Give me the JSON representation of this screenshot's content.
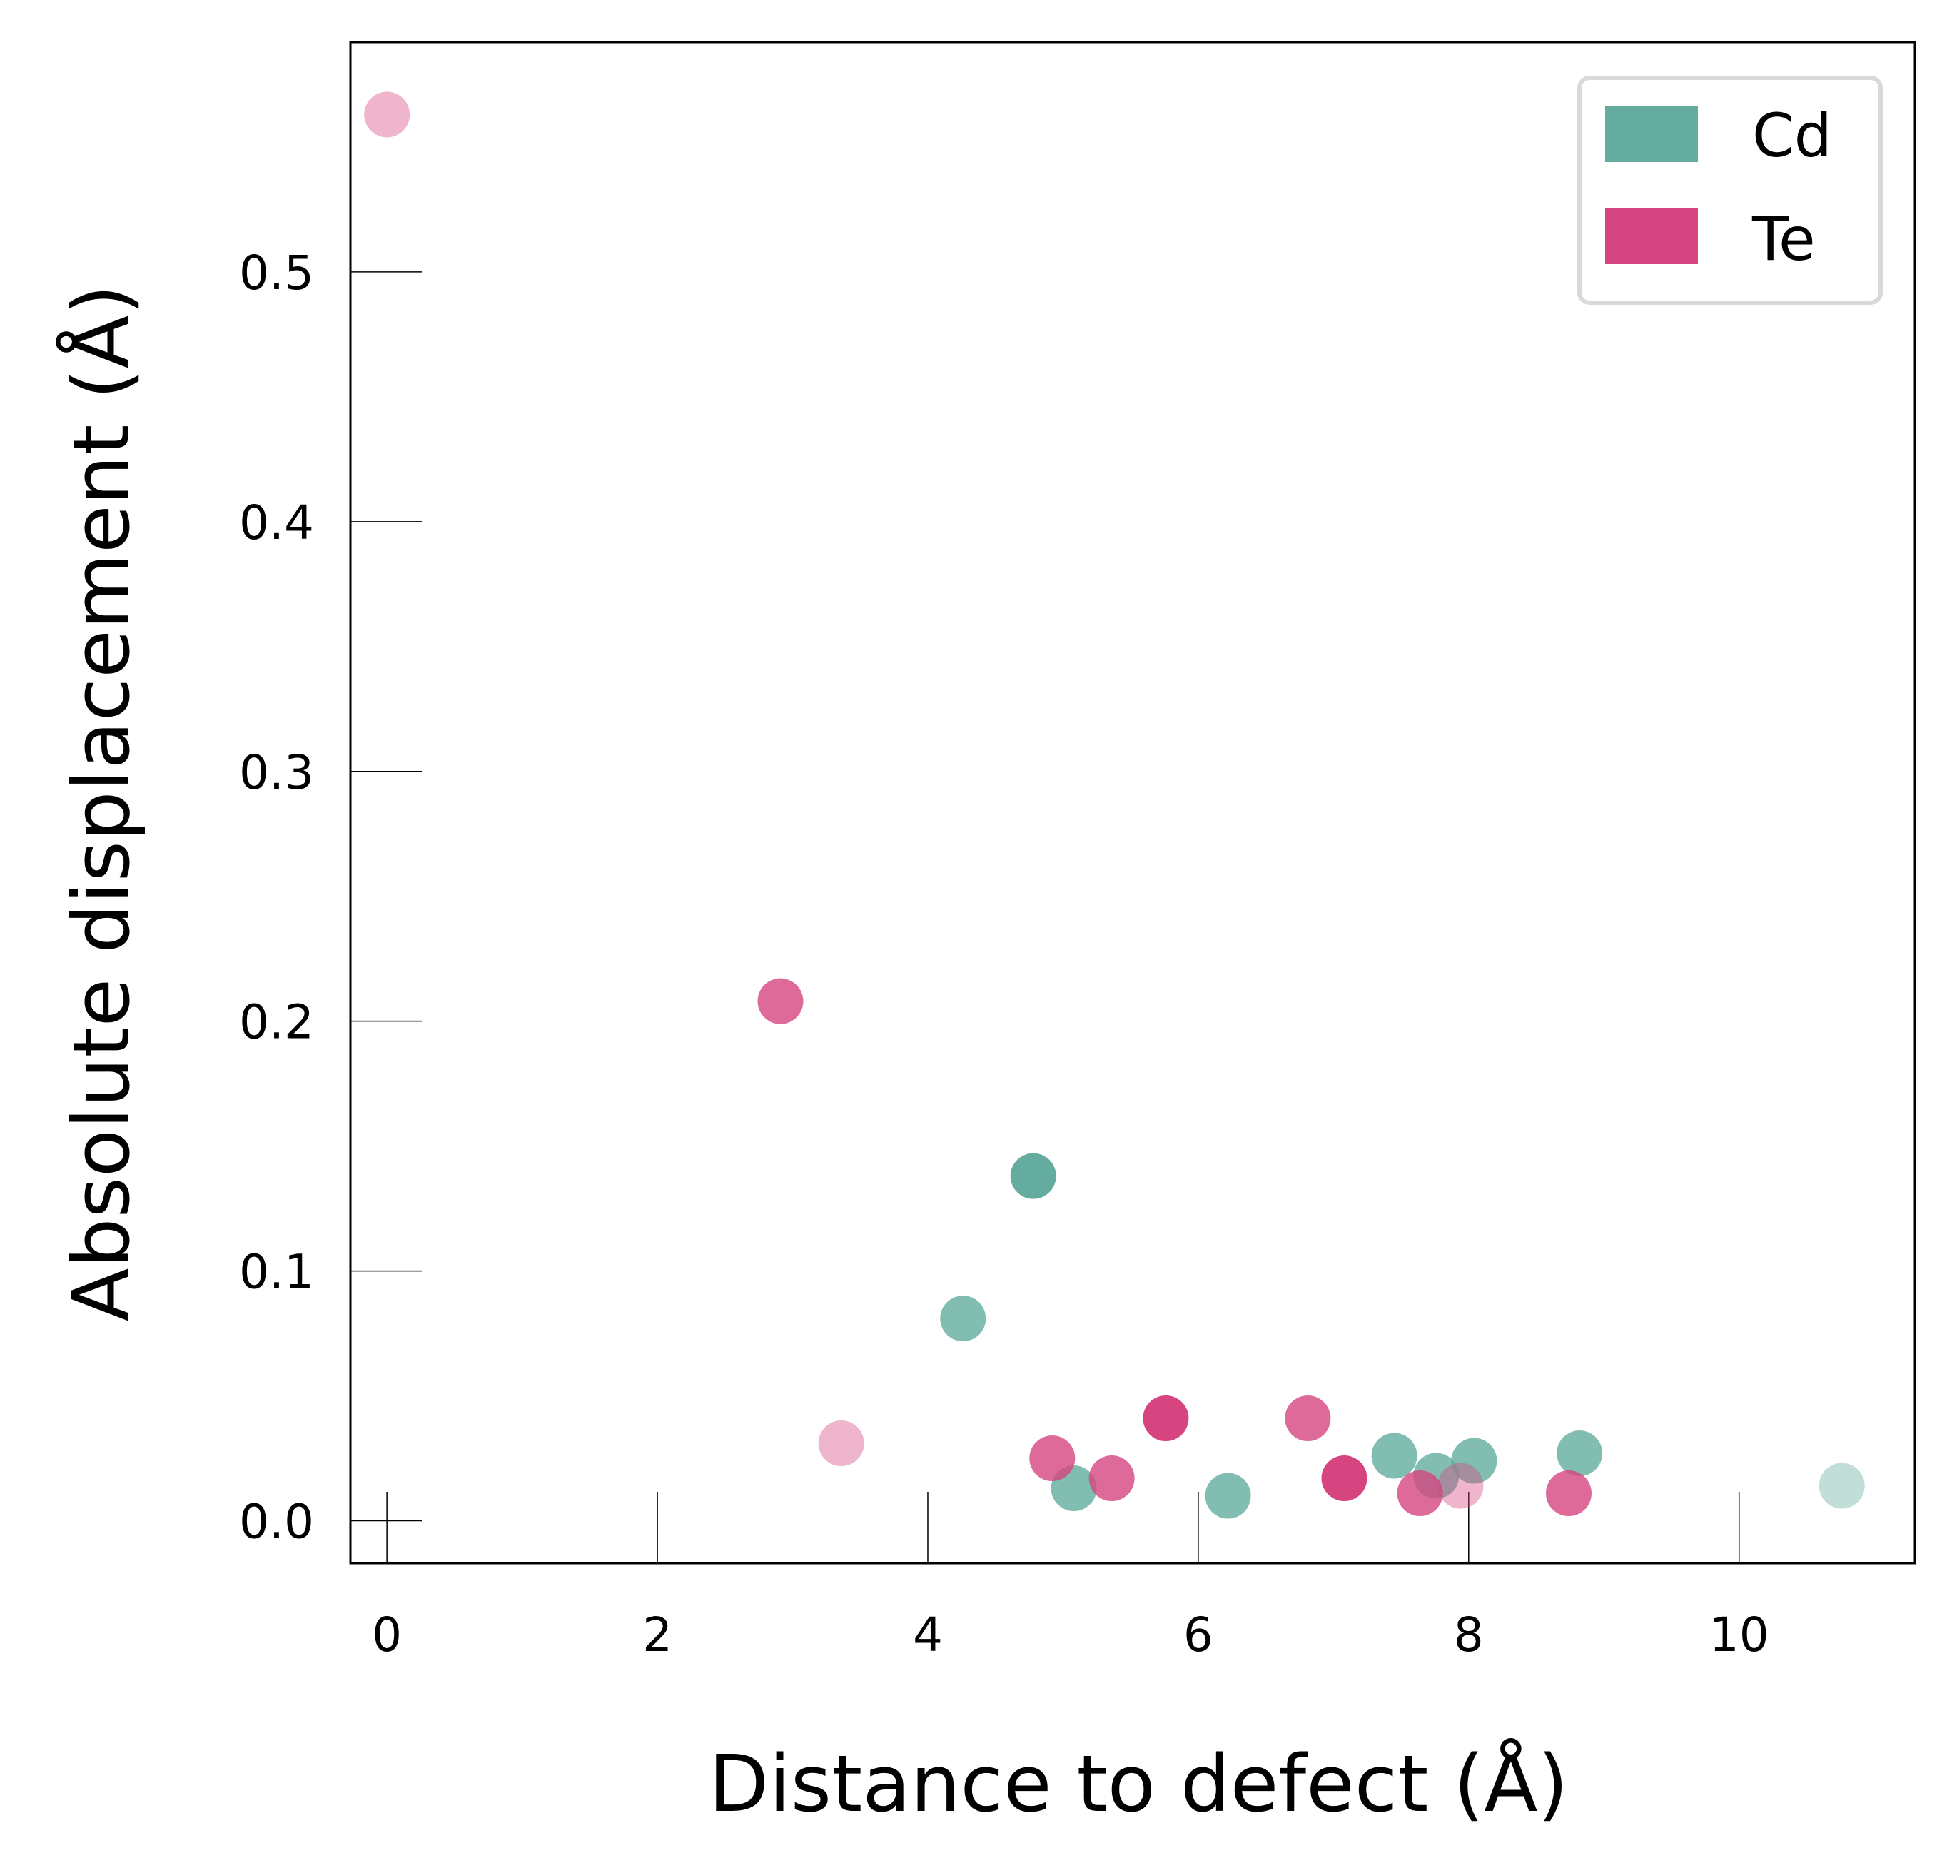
{
  "chart_data": {
    "type": "scatter",
    "xlabel": "Distance to defect (Å)",
    "ylabel": "Absolute displacement (Å)",
    "xlim": [
      -0.27,
      11.3
    ],
    "ylim": [
      -0.017,
      0.592
    ],
    "xticks": [
      0,
      2,
      4,
      6,
      8,
      10
    ],
    "xtick_labels": [
      "0",
      "2",
      "4",
      "6",
      "8",
      "10"
    ],
    "yticks": [
      0.0,
      0.1,
      0.2,
      0.3,
      0.4,
      0.5
    ],
    "ytick_labels": [
      "0.0",
      "0.1",
      "0.2",
      "0.3",
      "0.4",
      "0.5"
    ],
    "grid": false,
    "legend_position": "top-right",
    "series": [
      {
        "name": "Cd",
        "color": "#63ac9f",
        "points": [
          {
            "x": 4.26,
            "y": 0.081,
            "alpha": 0.8
          },
          {
            "x": 4.78,
            "y": 0.138,
            "alpha": 1.0
          },
          {
            "x": 5.08,
            "y": 0.013,
            "alpha": 0.8
          },
          {
            "x": 6.22,
            "y": 0.01,
            "alpha": 0.8
          },
          {
            "x": 7.45,
            "y": 0.026,
            "alpha": 0.8
          },
          {
            "x": 7.76,
            "y": 0.018,
            "alpha": 0.8
          },
          {
            "x": 8.04,
            "y": 0.024,
            "alpha": 0.8
          },
          {
            "x": 8.82,
            "y": 0.027,
            "alpha": 0.8
          },
          {
            "x": 10.76,
            "y": 0.014,
            "alpha": 0.4
          }
        ]
      },
      {
        "name": "Te",
        "color": "#d6457f",
        "points": [
          {
            "x": 0.0,
            "y": 0.563,
            "alpha": 0.4
          },
          {
            "x": 2.91,
            "y": 0.208,
            "alpha": 0.8
          },
          {
            "x": 3.36,
            "y": 0.031,
            "alpha": 0.4
          },
          {
            "x": 4.92,
            "y": 0.025,
            "alpha": 0.8
          },
          {
            "x": 5.36,
            "y": 0.017,
            "alpha": 0.8
          },
          {
            "x": 5.76,
            "y": 0.041,
            "alpha": 1.0
          },
          {
            "x": 6.81,
            "y": 0.041,
            "alpha": 0.8
          },
          {
            "x": 7.08,
            "y": 0.017,
            "alpha": 1.0
          },
          {
            "x": 7.64,
            "y": 0.011,
            "alpha": 0.8
          },
          {
            "x": 7.94,
            "y": 0.014,
            "alpha": 0.4
          },
          {
            "x": 8.74,
            "y": 0.011,
            "alpha": 0.8
          }
        ]
      }
    ]
  }
}
